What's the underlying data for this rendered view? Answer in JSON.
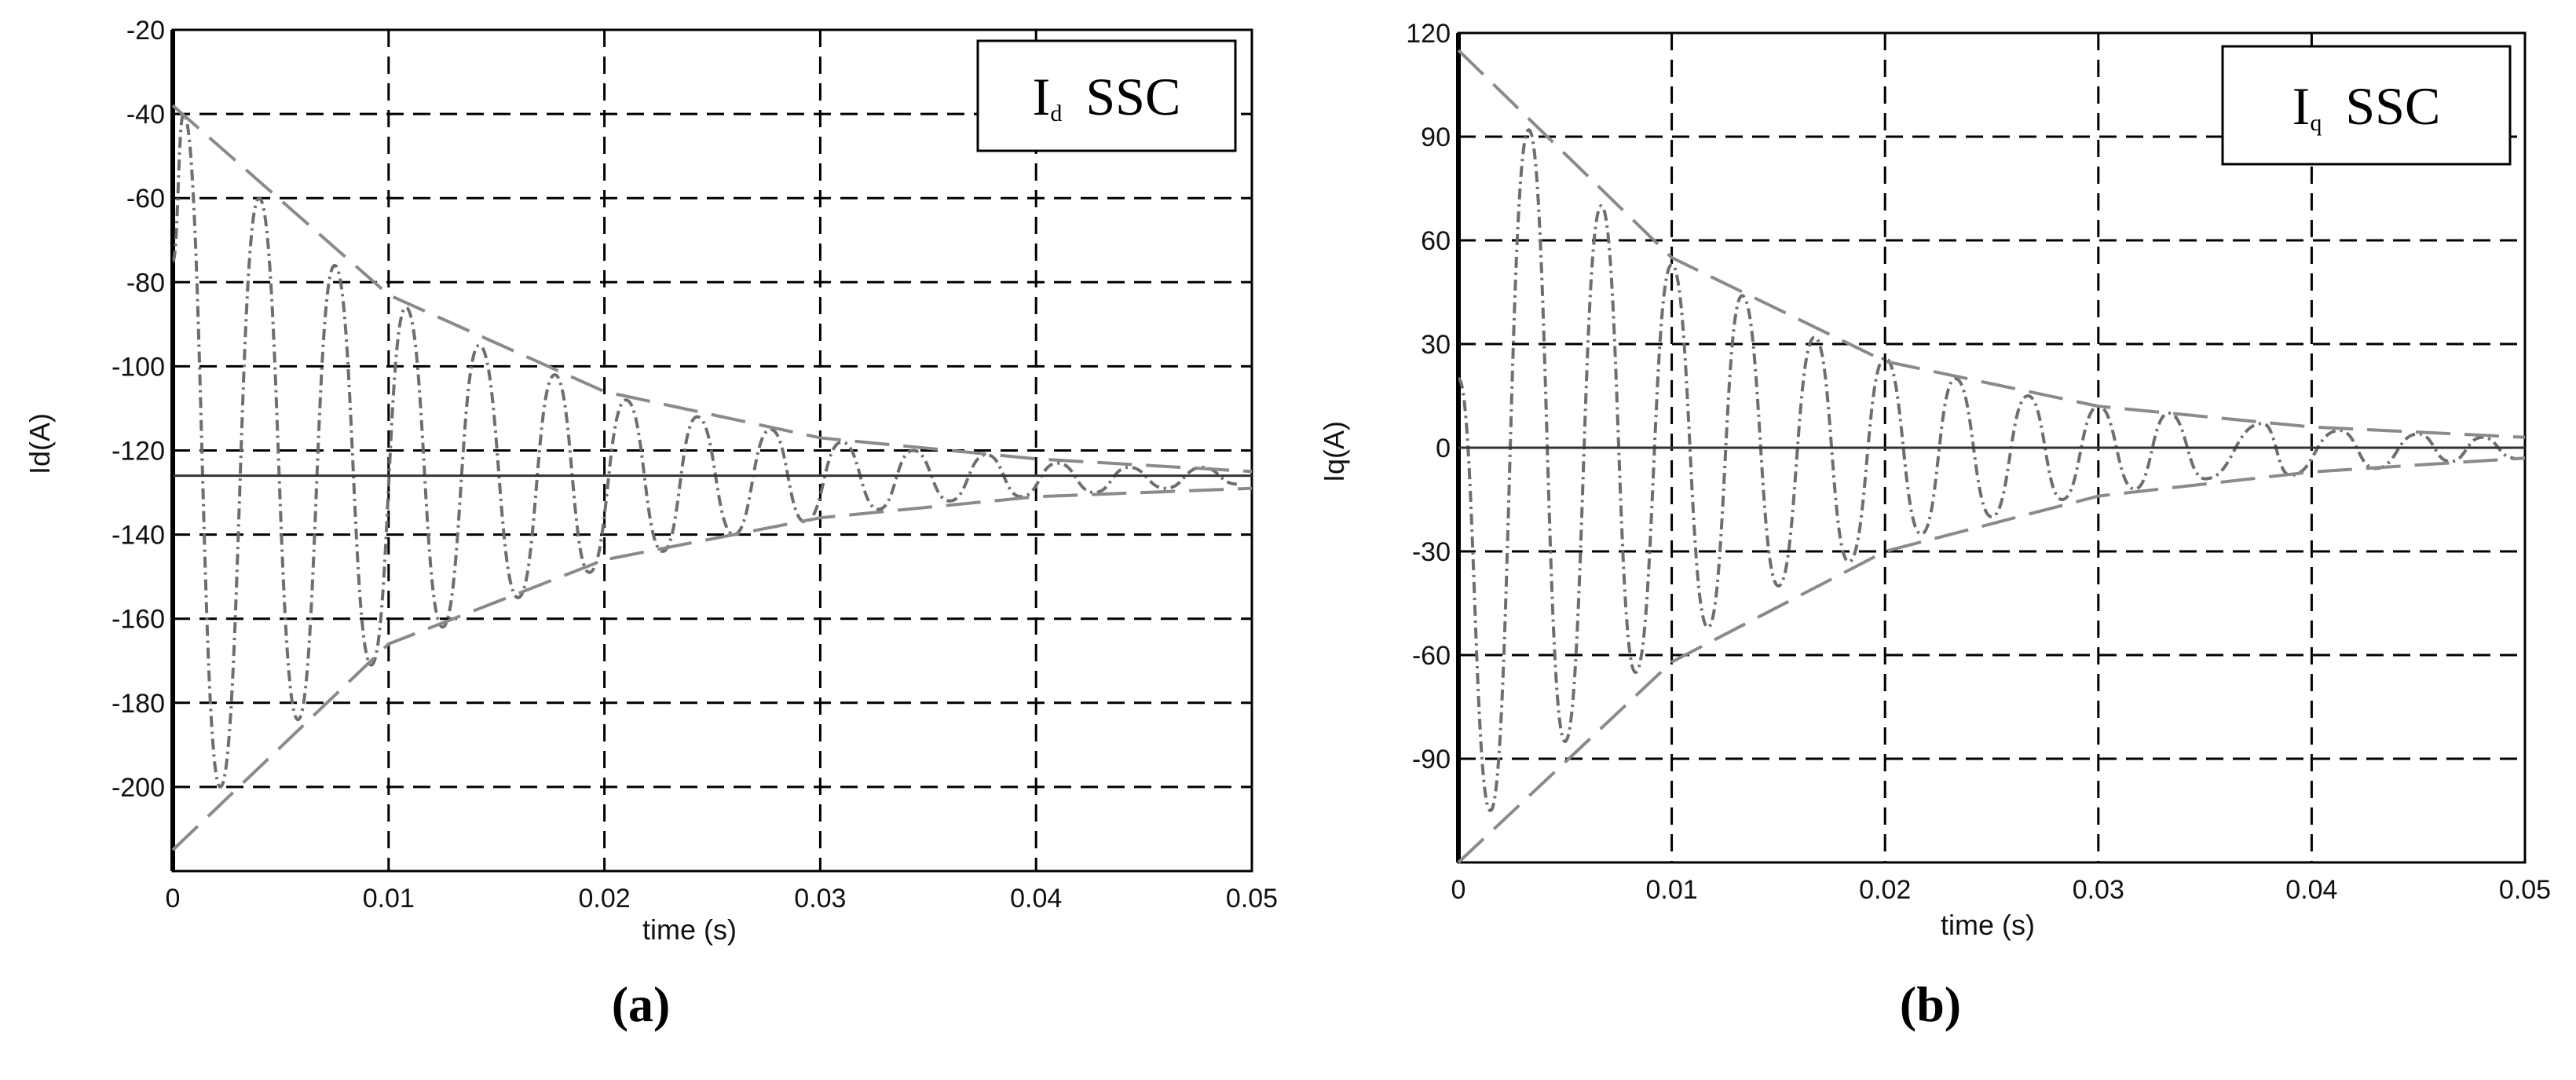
{
  "chart_data": [
    {
      "type": "line",
      "annotation": {
        "text": "I",
        "subscript": "d",
        "suffix": "SSC"
      },
      "xlabel": "time (s)",
      "ylabel": "Id(A)",
      "caption": "(a)",
      "xlim": [
        0,
        0.05
      ],
      "ylim": [
        -220,
        -20
      ],
      "xticks": [
        0,
        0.01,
        0.02,
        0.03,
        0.04,
        0.05
      ],
      "yticks": [
        -20,
        -40,
        -60,
        -80,
        -100,
        -120,
        -140,
        -160,
        -180,
        -200
      ],
      "grid": true,
      "series": [
        {
          "color": "#6e6e6e",
          "line_style": "dashdot",
          "x": [
            0,
            0.0005,
            0.0022,
            0.004,
            0.0058,
            0.0075,
            0.0092,
            0.0108,
            0.0125,
            0.0142,
            0.016,
            0.0177,
            0.0193,
            0.021,
            0.0227,
            0.0243,
            0.026,
            0.0277,
            0.0293,
            0.031,
            0.0327,
            0.0343,
            0.036,
            0.0377,
            0.0393,
            0.041,
            0.0427,
            0.0443,
            0.046,
            0.0477,
            0.0493
          ],
          "values": [
            -75,
            -40,
            -200,
            -60,
            -184,
            -76,
            -171,
            -86,
            -162,
            -95,
            -155,
            -102,
            -149,
            -108,
            -144,
            -112,
            -140,
            -115,
            -137,
            -118,
            -134,
            -120,
            -132,
            -121,
            -131,
            -123,
            -130,
            -124,
            -129,
            -124,
            -128
          ]
        },
        {
          "color": "#333333",
          "line_style": "solid",
          "x": [
            0,
            0.05
          ],
          "values": [
            -126,
            -126
          ]
        },
        {
          "color": "#8a8a8a",
          "line_style": "dashed",
          "x": [
            0,
            0.01,
            0.02,
            0.03,
            0.04,
            0.05
          ],
          "values": [
            -38,
            -83,
            -106,
            -117,
            -122,
            -125
          ]
        },
        {
          "color": "#8a8a8a",
          "line_style": "dashed",
          "x": [
            0,
            0.01,
            0.02,
            0.03,
            0.04,
            0.05
          ],
          "values": [
            -215,
            -166,
            -146,
            -136,
            -131,
            -129
          ]
        }
      ]
    },
    {
      "type": "line",
      "annotation": {
        "text": "I",
        "subscript": "q",
        "suffix": "SSC"
      },
      "xlabel": "time (s)",
      "ylabel": "Iq(A)",
      "caption": "(b)",
      "xlim": [
        0,
        0.05
      ],
      "ylim": [
        -120,
        120
      ],
      "xticks": [
        0,
        0.01,
        0.02,
        0.03,
        0.04,
        0.05
      ],
      "yticks": [
        120,
        90,
        60,
        30,
        0,
        -30,
        -60,
        -90
      ],
      "grid": true,
      "series": [
        {
          "color": "#6e6e6e",
          "line_style": "dashdot",
          "x": [
            0,
            0.0015,
            0.0033,
            0.005,
            0.0067,
            0.0083,
            0.01,
            0.0117,
            0.0133,
            0.015,
            0.0167,
            0.0183,
            0.02,
            0.0217,
            0.0233,
            0.025,
            0.0267,
            0.0283,
            0.03,
            0.0317,
            0.0333,
            0.035,
            0.0377,
            0.039,
            0.0413,
            0.043,
            0.045,
            0.0465,
            0.048,
            0.0495
          ],
          "values": [
            20,
            -105,
            92,
            -85,
            70,
            -65,
            53,
            -52,
            44,
            -40,
            32,
            -33,
            26,
            -25,
            20,
            -20,
            15,
            -15,
            12,
            -12,
            10,
            -9,
            7,
            -8,
            5,
            -6,
            4,
            -4,
            3,
            -3
          ]
        },
        {
          "color": "#333333",
          "line_style": "solid",
          "x": [
            0,
            0.05
          ],
          "values": [
            0,
            0
          ]
        },
        {
          "color": "#8a8a8a",
          "line_style": "dashed",
          "x": [
            0,
            0.01,
            0.02,
            0.03,
            0.04,
            0.05
          ],
          "values": [
            115,
            55,
            25,
            12,
            6,
            3
          ]
        },
        {
          "color": "#8a8a8a",
          "line_style": "dashed",
          "x": [
            0,
            0.01,
            0.02,
            0.03,
            0.04,
            0.05
          ],
          "values": [
            -120,
            -62,
            -30,
            -14,
            -7,
            -3
          ]
        }
      ]
    }
  ]
}
